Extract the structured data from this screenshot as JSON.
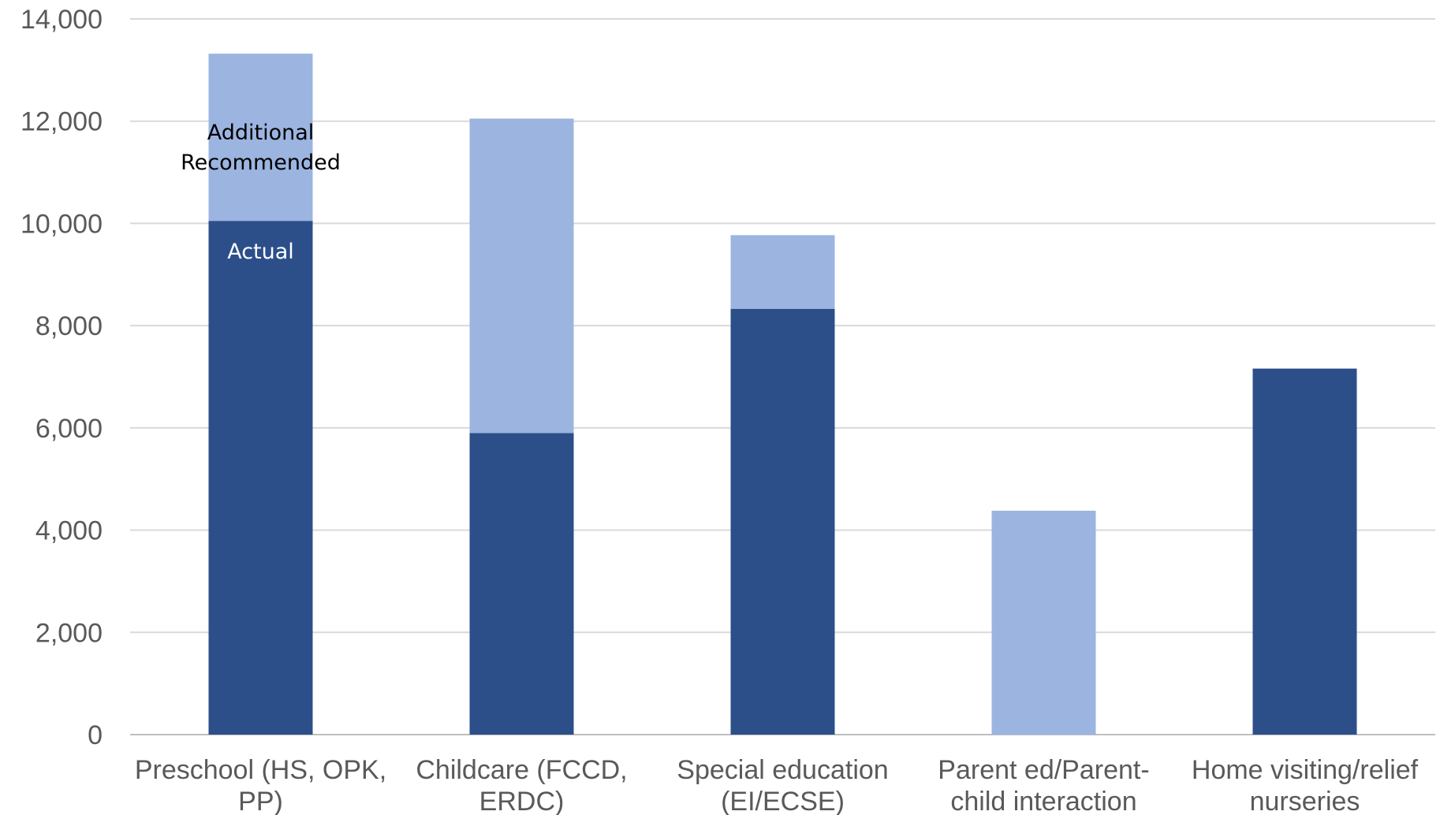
{
  "chart_data": {
    "type": "bar",
    "stacked": true,
    "categories": [
      [
        "Preschool (HS, OPK,",
        "PP)"
      ],
      [
        "Childcare (FCCD,",
        "ERDC)"
      ],
      [
        "Special education",
        "(EI/ECSE)"
      ],
      [
        "Parent ed/Parent-",
        "child interaction"
      ],
      [
        "Home visiting/relief",
        "nurseries"
      ]
    ],
    "series": [
      {
        "name": "Actual",
        "color": "#2c4f8a",
        "values": [
          10050,
          5900,
          8330,
          0,
          7160
        ]
      },
      {
        "name": "Additional Recommended",
        "color": "#9cb4e0",
        "values": [
          3270,
          6150,
          1440,
          4380,
          0
        ]
      }
    ],
    "segment_labels": {
      "actual": [
        "Actual"
      ],
      "additional": [
        "Additional",
        "Recommended"
      ]
    },
    "ylim": [
      0,
      14000
    ],
    "yticks": [
      0,
      2000,
      4000,
      6000,
      8000,
      10000,
      12000,
      14000
    ],
    "ytick_labels": [
      "0",
      "2,000",
      "4,000",
      "6,000",
      "8,000",
      "10,000",
      "12,000",
      "14,000"
    ],
    "grid": true,
    "title": "",
    "xlabel": "",
    "ylabel": ""
  }
}
